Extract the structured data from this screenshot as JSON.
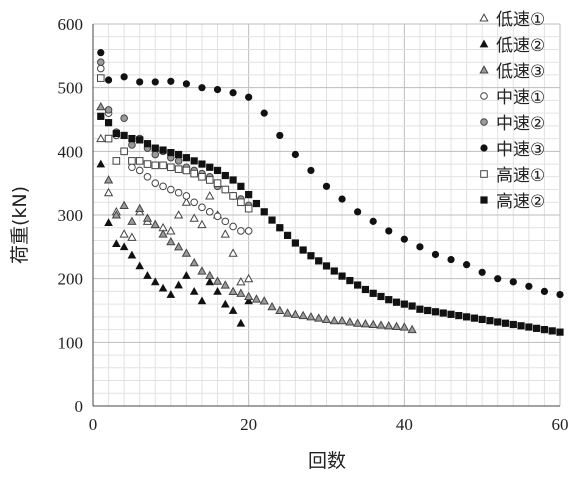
{
  "chart_data": {
    "type": "scatter",
    "xlabel": "回数",
    "ylabel": "荷重(kN)",
    "xlim": [
      0,
      60
    ],
    "ylim": [
      0,
      600
    ],
    "xticks": [
      "0",
      "20",
      "40",
      "60"
    ],
    "yticks": [
      "0",
      "100",
      "200",
      "300",
      "400",
      "500",
      "600"
    ],
    "grid": true,
    "legend_position": "top-right",
    "series": [
      {
        "name": "低速①",
        "marker": "triangle-open",
        "x": [
          1,
          2,
          3,
          4,
          5,
          6,
          7,
          8,
          9,
          10,
          11,
          12,
          13,
          14,
          15,
          16,
          17,
          18,
          19,
          20
        ],
        "y": [
          420,
          335,
          305,
          270,
          265,
          305,
          290,
          285,
          280,
          275,
          300,
          320,
          295,
          285,
          330,
          300,
          270,
          240,
          195,
          200
        ]
      },
      {
        "name": "低速②",
        "marker": "triangle-filled",
        "x": [
          1,
          2,
          3,
          4,
          5,
          6,
          7,
          8,
          9,
          10,
          11,
          12,
          13,
          14,
          15,
          16,
          17,
          18,
          19,
          20
        ],
        "y": [
          380,
          288,
          255,
          250,
          237,
          220,
          205,
          195,
          185,
          175,
          190,
          205,
          180,
          165,
          195,
          180,
          160,
          150,
          130,
          165
        ]
      },
      {
        "name": "低速③",
        "marker": "triangle-gray",
        "x": [
          1,
          2,
          3,
          4,
          5,
          6,
          7,
          8,
          9,
          10,
          11,
          12,
          13,
          14,
          15,
          16,
          17,
          18,
          19,
          20,
          21,
          22,
          23,
          24,
          25,
          26,
          27,
          28,
          29,
          30,
          31,
          32,
          33,
          34,
          35,
          36,
          37,
          38,
          39,
          40,
          41
        ],
        "y": [
          470,
          355,
          300,
          315,
          290,
          310,
          295,
          285,
          270,
          258,
          250,
          240,
          225,
          212,
          205,
          196,
          190,
          180,
          177,
          172,
          168,
          165,
          156,
          150,
          146,
          144,
          142,
          140,
          138,
          136,
          134,
          134,
          132,
          130,
          129,
          128,
          127,
          126,
          125,
          124,
          120
        ]
      },
      {
        "name": "中速①",
        "marker": "circle-open",
        "x": [
          1,
          2,
          3,
          4,
          5,
          6,
          7,
          8,
          9,
          10,
          11,
          12,
          13,
          14,
          15,
          16,
          17,
          18,
          19,
          20
        ],
        "y": [
          530,
          460,
          425,
          400,
          375,
          370,
          360,
          350,
          345,
          340,
          335,
          330,
          320,
          312,
          305,
          298,
          290,
          282,
          275,
          275
        ]
      },
      {
        "name": "中速②",
        "marker": "circle-gray",
        "x": [
          1,
          2,
          3,
          4,
          5,
          6,
          7,
          8,
          9,
          10,
          11,
          12,
          13,
          14,
          15,
          16,
          17,
          18,
          19,
          20
        ],
        "y": [
          540,
          465,
          430,
          452,
          410,
          420,
          405,
          395,
          400,
          390,
          385,
          375,
          370,
          365,
          360,
          345,
          340,
          330,
          325,
          315
        ]
      },
      {
        "name": "中速③",
        "marker": "circle-filled",
        "x": [
          1,
          2,
          4,
          6,
          8,
          10,
          12,
          14,
          16,
          18,
          20,
          22,
          24,
          26,
          28,
          30,
          32,
          34,
          36,
          38,
          40,
          42,
          44,
          46,
          48,
          50,
          52,
          54,
          56,
          58,
          60
        ],
        "y": [
          555,
          512,
          517,
          509,
          509,
          510,
          506,
          500,
          497,
          492,
          485,
          460,
          425,
          395,
          370,
          345,
          325,
          305,
          290,
          275,
          262,
          250,
          238,
          230,
          222,
          210,
          200,
          195,
          188,
          180,
          175
        ]
      },
      {
        "name": "高速①",
        "marker": "square-open",
        "x": [
          1,
          2,
          3,
          4,
          5,
          6,
          7,
          8,
          9,
          10,
          11,
          12,
          13,
          14,
          15,
          16,
          17,
          18,
          19,
          20
        ],
        "y": [
          515,
          420,
          385,
          400,
          385,
          385,
          380,
          378,
          378,
          375,
          372,
          370,
          365,
          360,
          355,
          350,
          340,
          330,
          320,
          310
        ]
      },
      {
        "name": "高速②",
        "marker": "square-filled",
        "x": [
          1,
          2,
          3,
          4,
          5,
          6,
          7,
          8,
          9,
          10,
          11,
          12,
          13,
          14,
          15,
          16,
          17,
          18,
          19,
          20,
          21,
          22,
          23,
          24,
          25,
          26,
          27,
          28,
          29,
          30,
          31,
          32,
          33,
          34,
          35,
          36,
          37,
          38,
          39,
          40,
          41,
          42,
          43,
          44,
          45,
          46,
          47,
          48,
          49,
          50,
          51,
          52,
          53,
          54,
          55,
          56,
          57,
          58,
          59,
          60
        ],
        "y": [
          455,
          445,
          428,
          425,
          420,
          418,
          412,
          405,
          402,
          398,
          395,
          390,
          385,
          380,
          375,
          370,
          362,
          355,
          345,
          332,
          318,
          305,
          292,
          280,
          268,
          256,
          245,
          236,
          228,
          220,
          212,
          204,
          197,
          190,
          183,
          177,
          172,
          167,
          163,
          160,
          157,
          152,
          150,
          148,
          146,
          144,
          142,
          140,
          138,
          136,
          134,
          132,
          130,
          128,
          126,
          124,
          122,
          120,
          118,
          116
        ]
      }
    ]
  }
}
